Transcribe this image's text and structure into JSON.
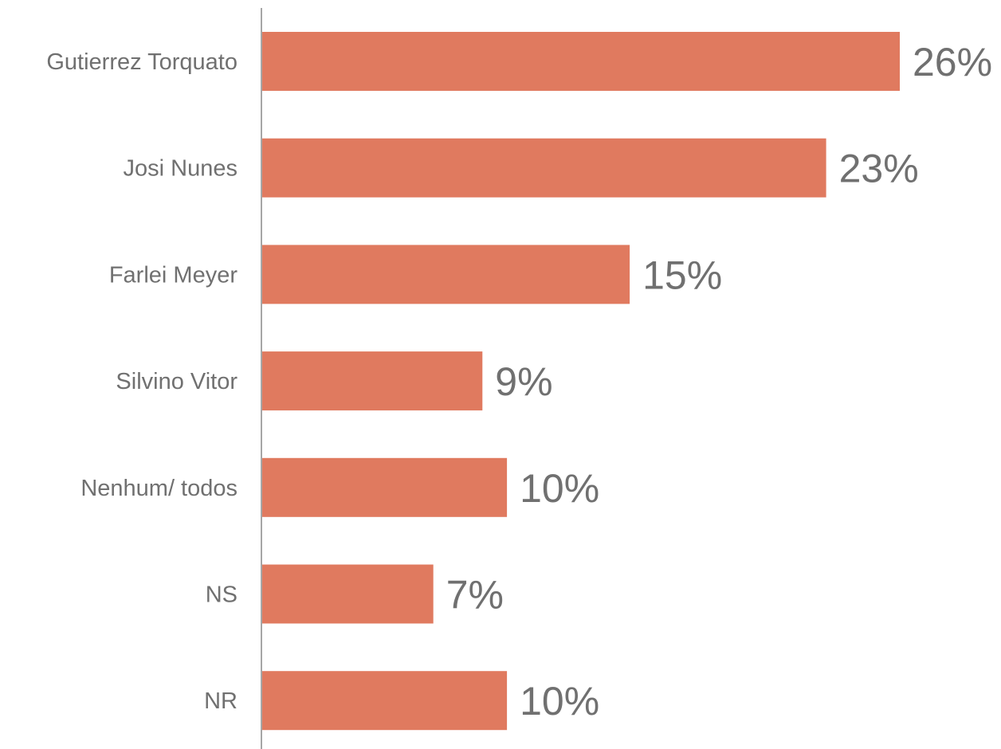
{
  "chart_data": {
    "type": "bar",
    "orientation": "horizontal",
    "categories": [
      "Gutierrez Torquato",
      "Josi Nunes",
      "Farlei Meyer",
      "Silvino Vitor",
      "Nenhum/ todos",
      "NS",
      "NR"
    ],
    "values": [
      26,
      23,
      15,
      9,
      10,
      7,
      10
    ],
    "value_labels": [
      "26%",
      "23%",
      "15%",
      "9%",
      "10%",
      "7%",
      "10%"
    ],
    "unit": "%",
    "title": "",
    "xlabel": "",
    "ylabel": "",
    "xlim": [
      0,
      26
    ],
    "grid": false,
    "legend": "none",
    "colors": {
      "bar": "#E07A5F",
      "axis": "#A6A6A6",
      "text": "#707070"
    }
  }
}
